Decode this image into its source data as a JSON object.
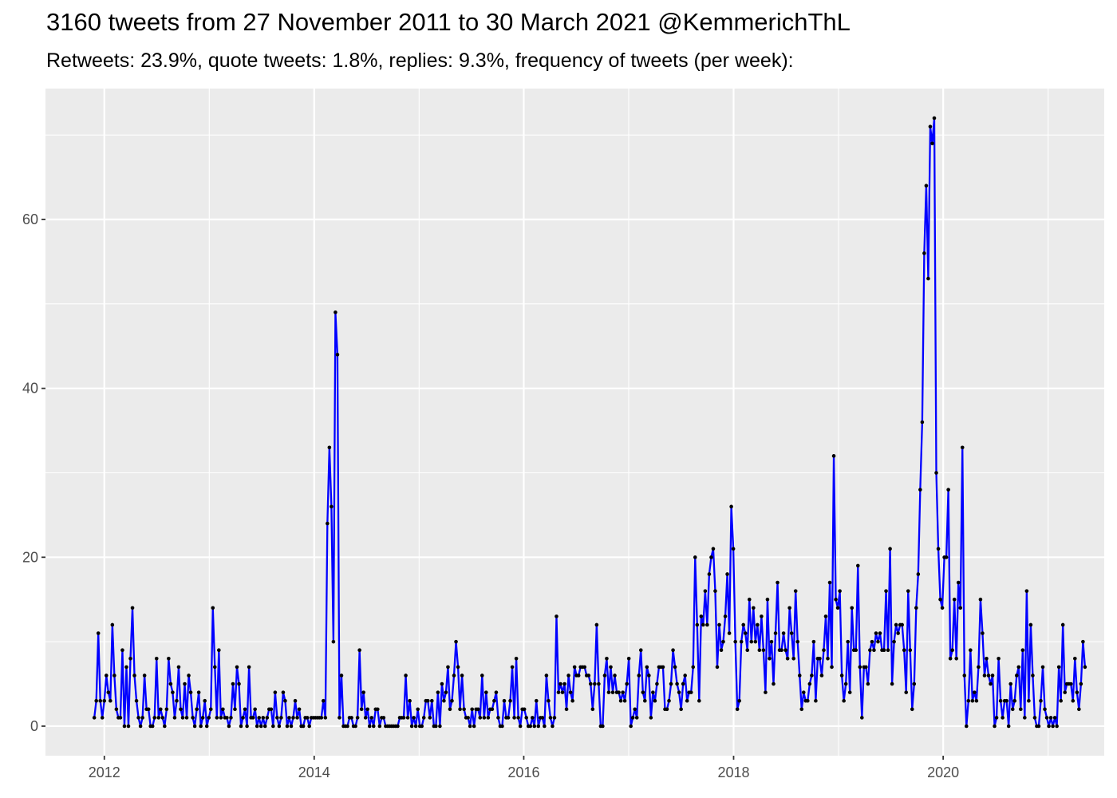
{
  "chart_data": {
    "type": "line",
    "title": "3160 tweets from 27 November 2011 to 30 March 2021 @KemmerichThL",
    "subtitle": "Retweets: 23.9%, quote tweets: 1.8%, replies: 9.3%, frequency of tweets (per week):",
    "xlabel": "",
    "ylabel": "",
    "x_start": "2011-11-27",
    "x_step_days": 7,
    "xlim": [
      "2011-06-10",
      "2021-07-15"
    ],
    "ylim": [
      -3.5,
      75.5
    ],
    "x_ticks": [
      "2012-01-01",
      "2014-01-01",
      "2016-01-01",
      "2018-01-01",
      "2020-01-01"
    ],
    "x_tick_labels": [
      "2012",
      "2014",
      "2016",
      "2018",
      "2020"
    ],
    "y_ticks": [
      0,
      20,
      40,
      60
    ],
    "grid": true,
    "series": [
      {
        "name": "",
        "color": "#0000ff",
        "point_color": "#000000",
        "values": [
          1,
          3,
          11,
          3,
          1,
          3,
          6,
          4,
          3,
          12,
          6,
          2,
          1,
          1,
          9,
          0,
          7,
          0,
          8,
          14,
          6,
          3,
          1,
          0,
          1,
          6,
          2,
          2,
          0,
          0,
          1,
          8,
          1,
          2,
          1,
          0,
          2,
          8,
          5,
          4,
          1,
          3,
          7,
          2,
          1,
          5,
          1,
          6,
          4,
          1,
          0,
          2,
          4,
          0,
          1,
          3,
          0,
          1,
          2,
          14,
          7,
          1,
          9,
          1,
          2,
          1,
          1,
          0,
          1,
          5,
          2,
          7,
          5,
          0,
          1,
          2,
          0,
          7,
          1,
          1,
          2,
          0,
          1,
          0,
          1,
          0,
          1,
          2,
          2,
          0,
          4,
          1,
          0,
          1,
          4,
          3,
          0,
          1,
          0,
          1,
          3,
          1,
          2,
          0,
          0,
          1,
          1,
          0,
          1,
          1,
          1,
          1,
          1,
          1,
          3,
          1,
          24,
          33,
          26,
          10,
          49,
          44,
          1,
          6,
          0,
          0,
          0,
          1,
          1,
          0,
          0,
          1,
          9,
          2,
          4,
          1,
          2,
          0,
          1,
          0,
          2,
          2,
          0,
          1,
          1,
          0,
          0,
          0,
          0,
          0,
          0,
          0,
          1,
          1,
          1,
          6,
          1,
          3,
          0,
          1,
          0,
          2,
          0,
          0,
          1,
          3,
          3,
          1,
          3,
          0,
          0,
          4,
          0,
          5,
          3,
          4,
          7,
          2,
          3,
          6,
          10,
          7,
          2,
          6,
          2,
          1,
          1,
          0,
          2,
          0,
          2,
          2,
          1,
          6,
          1,
          4,
          1,
          2,
          2,
          3,
          4,
          1,
          0,
          0,
          3,
          1,
          1,
          3,
          7,
          1,
          8,
          1,
          0,
          2,
          2,
          1,
          0,
          0,
          1,
          0,
          3,
          0,
          1,
          1,
          0,
          6,
          3,
          1,
          0,
          1,
          13,
          4,
          5,
          4,
          5,
          2,
          6,
          4,
          3,
          7,
          6,
          6,
          7,
          7,
          7,
          6,
          6,
          5,
          2,
          5,
          12,
          5,
          0,
          0,
          6,
          8,
          4,
          7,
          4,
          6,
          4,
          4,
          3,
          4,
          3,
          5,
          8,
          0,
          1,
          2,
          1,
          6,
          9,
          4,
          3,
          7,
          6,
          1,
          4,
          3,
          5,
          7,
          7,
          7,
          2,
          2,
          3,
          5,
          9,
          7,
          5,
          4,
          2,
          5,
          6,
          3,
          4,
          4,
          7,
          20,
          12,
          3,
          13,
          12,
          16,
          12,
          18,
          20,
          21,
          16,
          7,
          12,
          9,
          10,
          13,
          18,
          11,
          26,
          21,
          10,
          2,
          3,
          10,
          12,
          11,
          9,
          15,
          10,
          14,
          10,
          12,
          9,
          13,
          9,
          4,
          15,
          8,
          10,
          5,
          11,
          17,
          9,
          9,
          11,
          9,
          8,
          14,
          11,
          8,
          16,
          10,
          6,
          2,
          4,
          3,
          3,
          5,
          6,
          10,
          3,
          8,
          8,
          6,
          9,
          13,
          8,
          17,
          7,
          32,
          15,
          14,
          16,
          6,
          3,
          5,
          10,
          4,
          14,
          9,
          9,
          19,
          7,
          1,
          7,
          7,
          5,
          9,
          10,
          9,
          11,
          10,
          11,
          9,
          9,
          16,
          9,
          21,
          5,
          10,
          12,
          11,
          12,
          12,
          9,
          4,
          16,
          9,
          2,
          5,
          14,
          18,
          28,
          36,
          56,
          64,
          53,
          71,
          69,
          72,
          30,
          21,
          15,
          14,
          20,
          20,
          28,
          8,
          9,
          15,
          8,
          17,
          14,
          33,
          6,
          0,
          3,
          9,
          3,
          4,
          3,
          7,
          15,
          11,
          6,
          8,
          6,
          5,
          6,
          0,
          1,
          8,
          3,
          1,
          3,
          3,
          0,
          5,
          2,
          3,
          6,
          7,
          2,
          9,
          1,
          16,
          3,
          12,
          6,
          1,
          0,
          0,
          3,
          7,
          2,
          1,
          0,
          1,
          0,
          1,
          0,
          7,
          3,
          12,
          4,
          5,
          5,
          5,
          3,
          8,
          4,
          2,
          5,
          10,
          7
        ]
      }
    ]
  }
}
